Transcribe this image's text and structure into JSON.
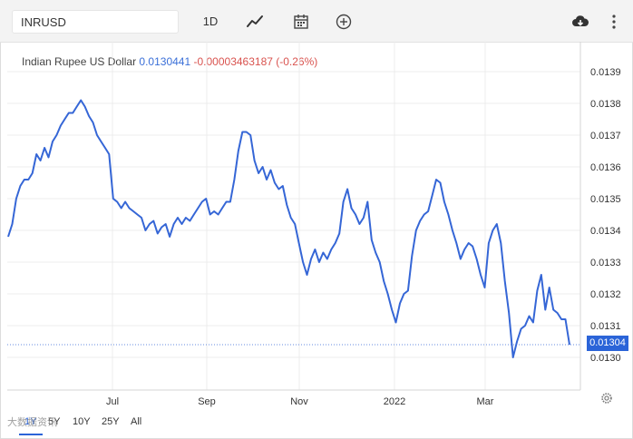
{
  "toolbar": {
    "symbol": "INRUSD",
    "interval": "1D",
    "icons": [
      "line-chart-icon",
      "calendar-icon",
      "plus-circle-icon",
      "cloud-download-icon",
      "more-vertical-icon"
    ]
  },
  "legend": {
    "name": "Indian Rupee US Dollar",
    "value": "0.0130441",
    "change": "-0.00003463187 (-0.26%)"
  },
  "price_tag": "0.01304",
  "range_buttons": [
    "1Y",
    "5Y",
    "10Y",
    "25Y",
    "All"
  ],
  "active_range": "1Y",
  "watermark": "大数据资讯",
  "colors": {
    "line": "#3566d6",
    "price_tag": "#2b64d8",
    "change": "#d9534f"
  },
  "chart_data": {
    "type": "line",
    "series": [
      {
        "values": [
          0.01338,
          0.01342,
          0.0135,
          0.01354,
          0.01356,
          0.01356,
          0.01358,
          0.01364,
          0.01362,
          0.01366,
          0.01363,
          0.01368,
          0.0137,
          0.01373,
          0.01375,
          0.01377,
          0.01377,
          0.01379,
          0.01381,
          0.01379,
          0.01376,
          0.01374,
          0.0137,
          0.01368,
          0.01366,
          0.01364,
          0.0135,
          0.01349,
          0.01347,
          0.01349,
          0.01347,
          0.01346,
          0.01345,
          0.01344,
          0.0134,
          0.01342,
          0.01343,
          0.01339,
          0.01341,
          0.01342,
          0.01338,
          0.01342,
          0.01344,
          0.01342,
          0.01344,
          0.01343,
          0.01345,
          0.01347,
          0.01349,
          0.0135,
          0.01345,
          0.01346,
          0.01345,
          0.01347,
          0.01349,
          0.01349,
          0.01356,
          0.01365,
          0.01371,
          0.01371,
          0.0137,
          0.01362,
          0.01358,
          0.0136,
          0.01356,
          0.01359,
          0.01355,
          0.01353,
          0.01354,
          0.01348,
          0.01344,
          0.01342,
          0.01336,
          0.0133,
          0.01326,
          0.01331,
          0.01334,
          0.0133,
          0.01333,
          0.01331,
          0.01334,
          0.01336,
          0.01339,
          0.01349,
          0.01353,
          0.01347,
          0.01345,
          0.01342,
          0.01344,
          0.01349,
          0.01337,
          0.01333,
          0.0133,
          0.01324,
          0.0132,
          0.01315,
          0.01311,
          0.01317,
          0.0132,
          0.01321,
          0.01332,
          0.0134,
          0.01343,
          0.01345,
          0.01346,
          0.01351,
          0.01356,
          0.01355,
          0.01349,
          0.01345,
          0.0134,
          0.01336,
          0.01331,
          0.01334,
          0.01336,
          0.01335,
          0.01331,
          0.01326,
          0.01322,
          0.01336,
          0.0134,
          0.01342,
          0.01336,
          0.01324,
          0.01314,
          0.013,
          0.01305,
          0.01309,
          0.0131,
          0.01313,
          0.01311,
          0.01321,
          0.01326,
          0.01315,
          0.01322,
          0.01315,
          0.01314,
          0.01312,
          0.01312,
          0.01304
        ]
      }
    ],
    "x_tick_labels": [
      "Jul",
      "Sep",
      "Nov",
      "2022",
      "Mar"
    ],
    "y_tick_labels": [
      "0.0130",
      "0.0131",
      "0.0132",
      "0.0133",
      "0.0134",
      "0.0135",
      "0.0136",
      "0.0137",
      "0.0138",
      "0.0139"
    ],
    "ylim": [
      0.01296,
      0.01402
    ],
    "last_value": 0.01304,
    "grid": true
  }
}
